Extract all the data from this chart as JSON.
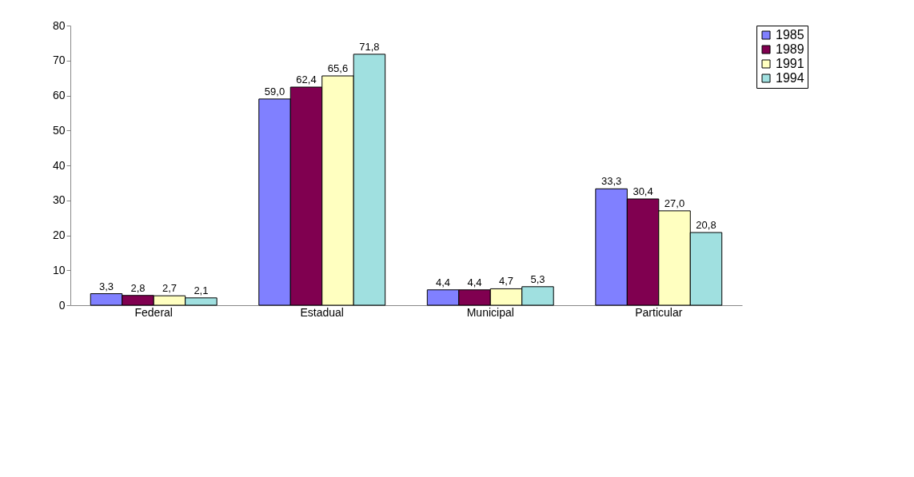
{
  "chart_data": {
    "type": "bar",
    "categories": [
      "Federal",
      "Estadual",
      "Municipal",
      "Particular"
    ],
    "series": [
      {
        "name": "1985",
        "color": "#8080ff",
        "values": [
          3.3,
          59.0,
          4.4,
          33.3
        ],
        "value_labels": [
          "3,3",
          "59,0",
          "4,4",
          "33,3"
        ]
      },
      {
        "name": "1989",
        "color": "#800050",
        "values": [
          2.8,
          62.4,
          4.4,
          30.4
        ],
        "value_labels": [
          "2,8",
          "62,4",
          "4,4",
          "30,4"
        ]
      },
      {
        "name": "1991",
        "color": "#ffffc0",
        "values": [
          2.7,
          65.6,
          4.7,
          27.0
        ],
        "value_labels": [
          "2,7",
          "65,6",
          "4,7",
          "27,0"
        ]
      },
      {
        "name": "1994",
        "color": "#a0e0e0",
        "values": [
          2.1,
          71.8,
          5.3,
          20.8
        ],
        "value_labels": [
          "2,1",
          "71,8",
          "5,3",
          "20,8"
        ]
      }
    ],
    "ylim": [
      0,
      80
    ],
    "yticks": [
      0,
      10,
      20,
      30,
      40,
      50,
      60,
      70,
      80
    ],
    "grid": false,
    "legend": "right"
  }
}
